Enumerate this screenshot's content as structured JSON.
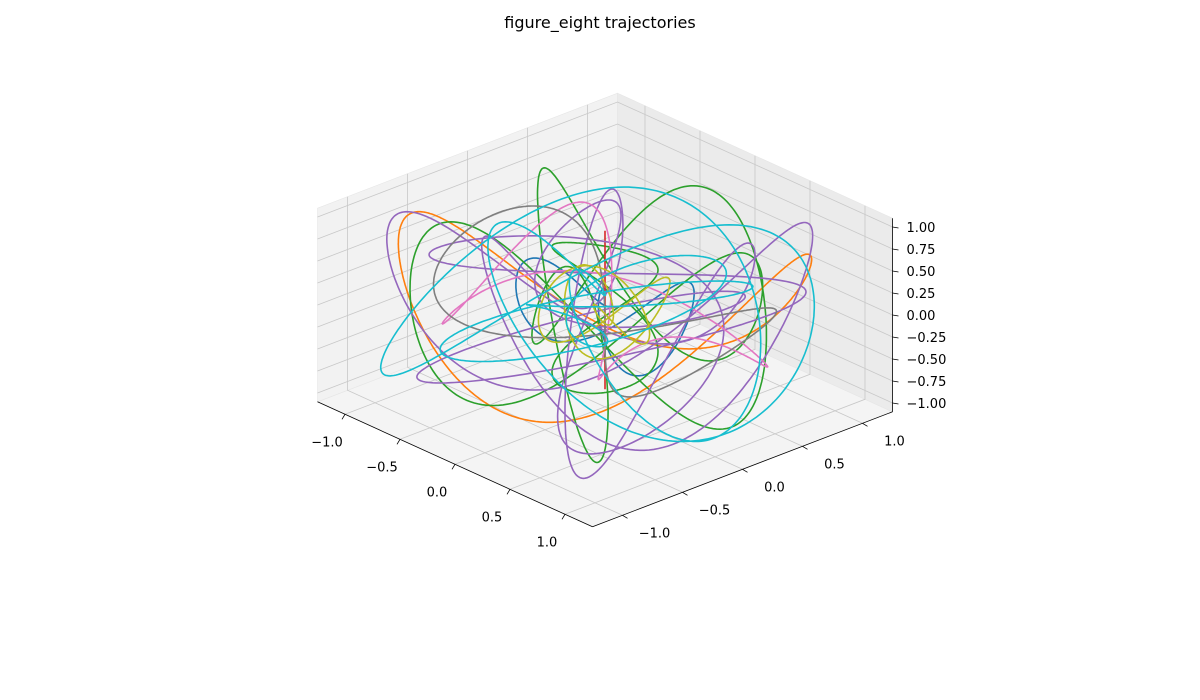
{
  "chart_data": {
    "type": "line3d",
    "title": "figure_eight trajectories",
    "x_ticks": [
      "−1.0",
      "−0.5",
      "0.0",
      "0.5",
      "1.0"
    ],
    "y_ticks": [
      "−1.0",
      "−0.5",
      "0.0",
      "0.5",
      "1.0"
    ],
    "z_ticks": [
      "−1.00",
      "−0.75",
      "−0.50",
      "−0.25",
      "0.00",
      "0.25",
      "0.50",
      "0.75",
      "1.00"
    ],
    "xlim": [
      -1.25,
      1.25
    ],
    "ylim": [
      -1.25,
      1.25
    ],
    "zlim": [
      -1.1,
      1.1
    ],
    "grid": true,
    "series": [
      {
        "color": "#1f77b4",
        "kind": "loop",
        "params": {
          "a": 0.55,
          "b": 0.35,
          "c": 0.35,
          "p": 1,
          "q": 2,
          "r": 3,
          "ph": 0.3
        }
      },
      {
        "color": "#ff7f0e",
        "kind": "loop",
        "params": {
          "a": 1.05,
          "b": 0.95,
          "c": 0.85,
          "p": 1,
          "q": 1,
          "r": 2,
          "ph": 0.9
        }
      },
      {
        "color": "#2ca02c",
        "kind": "eight",
        "params": {
          "a": 0.25,
          "b": 0.25,
          "c": 0.85,
          "p": 2,
          "q": 1,
          "r": 1,
          "ph": 0.0
        }
      },
      {
        "color": "#2ca02c",
        "kind": "loop",
        "params": {
          "a": 0.9,
          "b": 0.8,
          "c": 1.0,
          "p": 3,
          "q": 2,
          "r": 5,
          "ph": 1.2
        }
      },
      {
        "color": "#d62728",
        "kind": "line",
        "params": {
          "a": 0.0,
          "b": 0.0,
          "c": 0.9,
          "p": 0,
          "q": 0,
          "r": 1,
          "ph": 0.0
        }
      },
      {
        "color": "#9467bd",
        "kind": "loop",
        "params": {
          "a": 1.0,
          "b": 0.95,
          "c": 0.95,
          "p": 2,
          "q": 3,
          "r": 5,
          "ph": 0.4
        }
      },
      {
        "color": "#9467bd",
        "kind": "loop",
        "params": {
          "a": 0.85,
          "b": 0.9,
          "c": 0.75,
          "p": 3,
          "q": 4,
          "r": 2,
          "ph": 2.1
        }
      },
      {
        "color": "#e377c2",
        "kind": "loop",
        "params": {
          "a": 1.05,
          "b": 0.6,
          "c": 0.45,
          "p": 1,
          "q": 2,
          "r": 3,
          "ph": 1.7
        }
      },
      {
        "color": "#7f7f7f",
        "kind": "loop",
        "params": {
          "a": 1.2,
          "b": 0.55,
          "c": 0.35,
          "p": 1,
          "q": 2,
          "r": 2,
          "ph": 0.6
        }
      },
      {
        "color": "#bcbd22",
        "kind": "loop",
        "params": {
          "a": 0.3,
          "b": 0.3,
          "c": 0.35,
          "p": 2,
          "q": 3,
          "r": 4,
          "ph": 0.2
        }
      },
      {
        "color": "#17becf",
        "kind": "loop",
        "params": {
          "a": 1.1,
          "b": 0.9,
          "c": 0.85,
          "p": 2,
          "q": 3,
          "r": 4,
          "ph": 2.6
        }
      },
      {
        "color": "#17becf",
        "kind": "loop",
        "params": {
          "a": 0.75,
          "b": 0.7,
          "c": 0.55,
          "p": 3,
          "q": 2,
          "r": 3,
          "ph": 1.0
        }
      }
    ]
  }
}
